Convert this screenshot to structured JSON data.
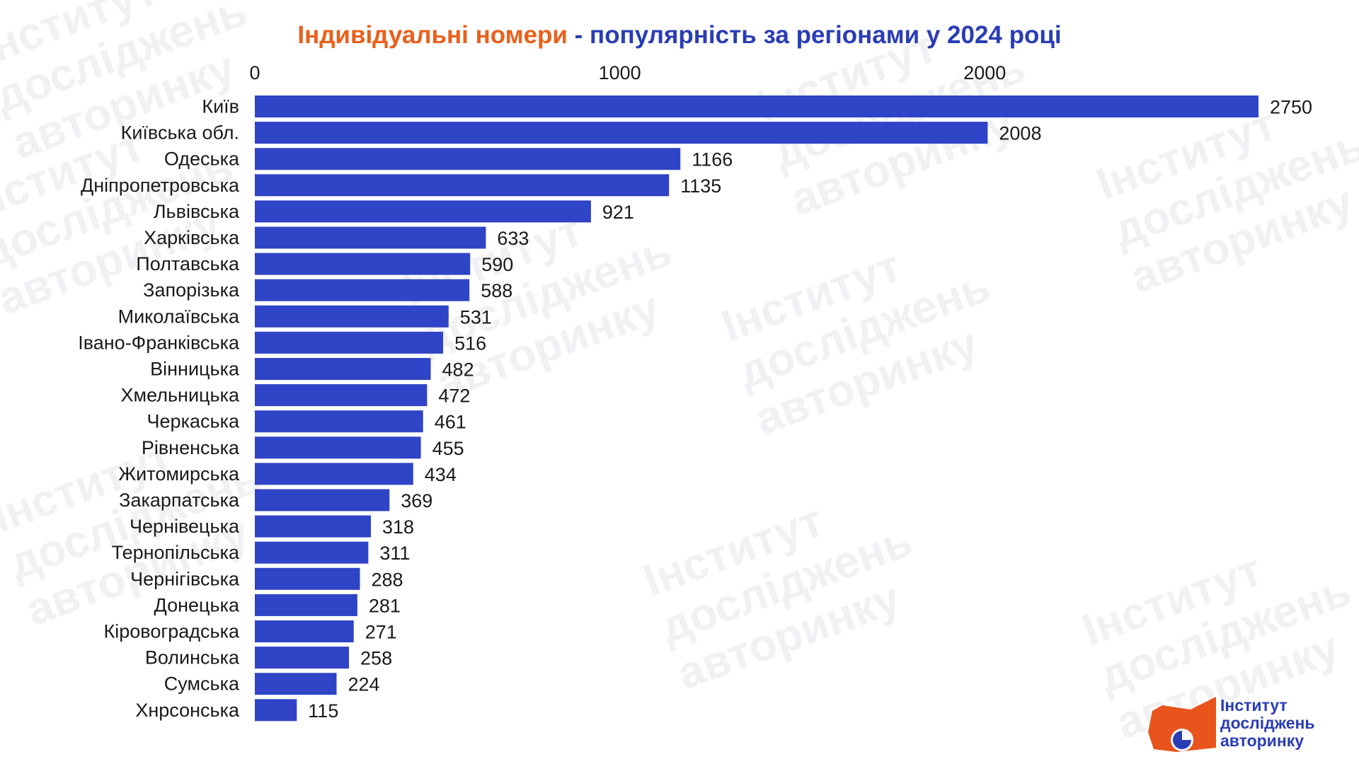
{
  "title": {
    "highlight": "Індивідуальні номери",
    "rest": " - популярність за регіонами у 2024 році"
  },
  "colors": {
    "bar": "#2f44c6",
    "title_highlight": "#e8601c",
    "title_rest": "#2a3db5",
    "logo_orange": "#e8541c",
    "logo_blue": "#2a3db5"
  },
  "logo": {
    "line1": "Інститут",
    "line2": "досліджень",
    "line3": "авторинку"
  },
  "watermark_text": "Інститут\nдосліджень\nавторинку",
  "chart_data": {
    "type": "bar",
    "orientation": "horizontal",
    "title": "Індивідуальні номери - популярність за регіонами у 2024 році",
    "xlabel": "",
    "ylabel": "",
    "xlim": [
      0,
      2750
    ],
    "x_ticks": [
      0,
      1000,
      2000
    ],
    "x_axis_position": "top",
    "grid": false,
    "data_labels": true,
    "categories": [
      "Київ",
      "Київська обл.",
      "Одеська",
      "Дніпропетровська",
      "Львівська",
      "Харківська",
      "Полтавська",
      "Запорізька",
      "Миколаївська",
      "Івано-Франківська",
      "Вінницька",
      "Хмельницька",
      "Черкаська",
      "Рівненська",
      "Житомирська",
      "Закарпатська",
      "Чернівецька",
      "Тернопільська",
      "Чернігівська",
      "Донецька",
      "Кіровоградська",
      "Волинська",
      "Сумська",
      "Хнрсонська"
    ],
    "values": [
      2750,
      2008,
      1166,
      1135,
      921,
      633,
      590,
      588,
      531,
      516,
      482,
      472,
      461,
      455,
      434,
      369,
      318,
      311,
      288,
      281,
      271,
      258,
      224,
      115
    ]
  }
}
